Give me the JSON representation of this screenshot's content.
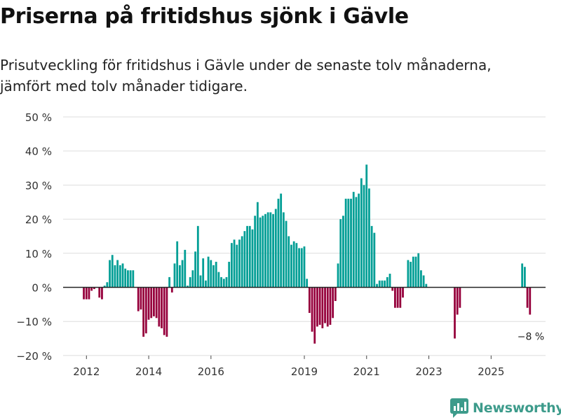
{
  "header": {
    "title": "Priserna på fritidshus sjönk i Gävle",
    "subtitle_line1": "Prisutveckling för fritidshus i Gävle under de senaste tolv månaderna,",
    "subtitle_line2": "jämfört med tolv månader tidigare."
  },
  "brand": {
    "name": "Newsworthy",
    "color": "#3d9b8b"
  },
  "colors": {
    "positive": "#009e95",
    "negative": "#96003c",
    "grid": "#dddddd",
    "zero_line": "#222222"
  },
  "chart_data": {
    "type": "bar",
    "title": "Priserna på fritidshus sjönk i Gävle",
    "xlabel": "",
    "ylabel": "",
    "ylim": [
      -20,
      50
    ],
    "y_ticks": [
      50,
      40,
      30,
      20,
      10,
      0,
      -10,
      -20
    ],
    "y_tick_labels": [
      "50 %",
      "40 %",
      "30 %",
      "20 %",
      "10 %",
      "0 %",
      "−10 %",
      "−20 %"
    ],
    "x_tick_labels": [
      {
        "label": "2012",
        "t": 2012.0
      },
      {
        "label": "2014",
        "t": 2014.0
      },
      {
        "label": "2016",
        "t": 2016.0
      },
      {
        "label": "2019",
        "t": 2019.0
      },
      {
        "label": "2021",
        "t": 2021.0
      },
      {
        "label": "2023",
        "t": 2023.0
      },
      {
        "label": "2025",
        "t": 2025.0
      }
    ],
    "x_range": [
      2011.25,
      2026.75
    ],
    "annotation": {
      "label": "−8 %",
      "value": -8
    },
    "series": [
      {
        "name": "Prisförändring",
        "start": 2011.9167,
        "step": 0.0833333,
        "values": [
          -3.5,
          -3.5,
          -3.5,
          -1,
          -0.5,
          0,
          -3,
          -3.5,
          0.5,
          1.5,
          8,
          9.5,
          6.5,
          8,
          6.5,
          7,
          5.5,
          5,
          5,
          5,
          0,
          -7,
          -6.5,
          -14.5,
          -13.5,
          -9.5,
          -9,
          -8.5,
          -9,
          -11.5,
          -12,
          -14,
          -14.5,
          3,
          -1.5,
          7,
          13.5,
          6.5,
          8,
          11,
          0.5,
          3,
          5,
          10.5,
          18,
          3.5,
          8.5,
          2,
          9,
          8,
          6.5,
          7.5,
          4.5,
          3,
          2.5,
          3,
          7.5,
          13,
          14,
          12.5,
          14,
          15,
          16.5,
          18,
          18,
          17,
          21,
          25,
          20.5,
          21,
          21.5,
          22,
          22,
          21.5,
          23,
          26,
          27.5,
          22,
          19.5,
          15,
          12.5,
          13.5,
          13,
          11.5,
          11.5,
          12,
          2.5,
          -7.5,
          -13,
          -16.5,
          -11.5,
          -11,
          -12,
          -10.5,
          -11.5,
          -11,
          -9,
          -4,
          7,
          20,
          21,
          26,
          26,
          26,
          28,
          26.5,
          27.5,
          32,
          30,
          36,
          29,
          18,
          16,
          1,
          2,
          2,
          2,
          3,
          4,
          -1,
          -6,
          -6,
          -6,
          -3,
          0,
          8,
          7.5,
          9,
          9,
          10,
          5,
          3.5,
          1,
          0,
          0,
          0,
          0,
          0,
          0,
          0,
          0,
          0,
          0,
          -15,
          -8,
          -6,
          0,
          0,
          0,
          0,
          0,
          0,
          0,
          0,
          0,
          0,
          0,
          0,
          0,
          0,
          0,
          0,
          0,
          0,
          0,
          0,
          0,
          0,
          0,
          7,
          6,
          -6,
          -8
        ]
      }
    ]
  }
}
